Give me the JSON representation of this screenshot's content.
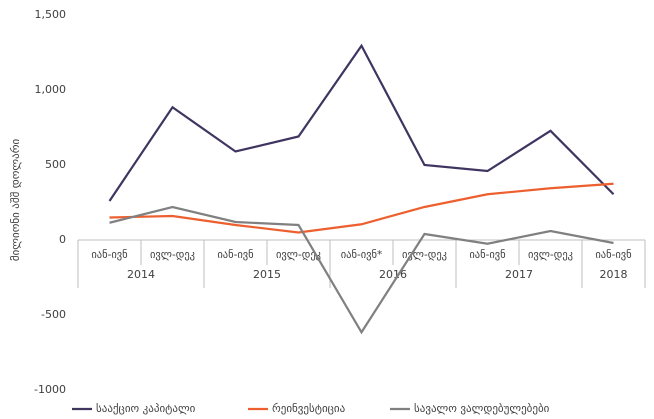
{
  "chart_data": {
    "type": "line",
    "y_label": "მილიონი აშშ დოლარი",
    "categories": [
      "იან-ივნ",
      "ივლ-დეკ",
      "იან-ივნ",
      "ივლ-დეკ",
      "იან-ივნ*",
      "ივლ-დეკ",
      "იან-ივნ",
      "ივლ-დეკ",
      "იან-ივნ"
    ],
    "category_groups": [
      "2014",
      "2015",
      "2016",
      "2017",
      "2018"
    ],
    "series": [
      {
        "name": "სააქციო კაპიტალი",
        "color": "#3f3560",
        "values": [
          260,
          885,
          590,
          690,
          1295,
          500,
          460,
          728,
          305
        ]
      },
      {
        "name": "რეინვესტიცია",
        "color": "#ed5f2e",
        "values": [
          150,
          160,
          100,
          50,
          105,
          220,
          305,
          345,
          375
        ]
      },
      {
        "name": "სავალო ვალდებულებები",
        "color": "#808080",
        "values": [
          115,
          220,
          120,
          100,
          -615,
          40,
          -25,
          60,
          -20
        ]
      }
    ],
    "ylim": [
      -1000,
      1500
    ],
    "yticks": [
      -1000,
      -500,
      0,
      500,
      {
        "value": 1000,
        "label": "1,000"
      },
      {
        "value": 1500,
        "label": "1,500"
      }
    ]
  }
}
